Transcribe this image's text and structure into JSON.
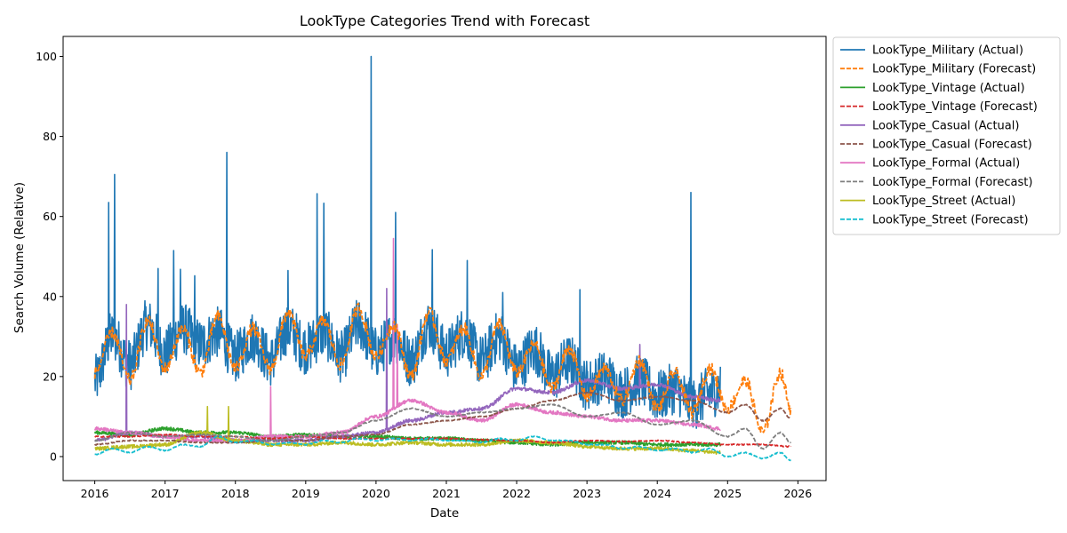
{
  "chart_data": {
    "type": "line",
    "title": "LookType Categories Trend with Forecast",
    "xlabel": "Date",
    "ylabel": "Search Volume (Relative)",
    "xlim": [
      2015.55,
      2026.4
    ],
    "ylim": [
      -6,
      105
    ],
    "x_ticks": [
      2016,
      2017,
      2018,
      2019,
      2020,
      2021,
      2022,
      2023,
      2024,
      2025,
      2026
    ],
    "x_tick_labels": [
      "2016",
      "2017",
      "2018",
      "2019",
      "2020",
      "2021",
      "2022",
      "2023",
      "2024",
      "2025",
      "2026"
    ],
    "y_ticks": [
      0,
      20,
      40,
      60,
      80,
      100
    ],
    "y_tick_labels": [
      "0",
      "20",
      "40",
      "60",
      "80",
      "100"
    ],
    "legend_position": "outside-right",
    "actual_range": [
      2016.0,
      2024.9
    ],
    "forecast_range": [
      2016.0,
      2025.9
    ],
    "series": [
      {
        "name": "LookType_Military (Actual)",
        "kind": "actual",
        "color": "#1f77b4",
        "dash": "solid",
        "x": [
          2016.0,
          2016.25,
          2016.5,
          2016.75,
          2017.0,
          2017.25,
          2017.5,
          2017.75,
          2018.0,
          2018.25,
          2018.5,
          2018.75,
          2019.0,
          2019.25,
          2019.5,
          2019.75,
          2020.0,
          2020.25,
          2020.5,
          2020.75,
          2021.0,
          2021.25,
          2021.5,
          2021.75,
          2022.0,
          2022.25,
          2022.5,
          2022.75,
          2023.0,
          2023.25,
          2023.5,
          2023.75,
          2024.0,
          2024.25,
          2024.5,
          2024.75,
          2024.9
        ],
        "y": [
          19,
          30,
          23,
          33,
          26,
          32,
          28,
          31,
          25,
          30,
          24,
          32,
          27,
          31,
          25,
          33,
          26,
          30,
          24,
          33,
          26,
          31,
          24,
          30,
          22,
          27,
          20,
          24,
          18,
          20,
          16,
          19,
          15,
          17,
          13,
          16,
          17
        ],
        "spikes": [
          [
            2016.2,
            63.5
          ],
          [
            2016.28,
            70.5
          ],
          [
            2016.9,
            47
          ],
          [
            2017.12,
            51.5
          ],
          [
            2017.22,
            46.8
          ],
          [
            2017.42,
            45.2
          ],
          [
            2017.88,
            76
          ],
          [
            2018.75,
            46.5
          ],
          [
            2019.16,
            65.7
          ],
          [
            2019.26,
            63.3
          ],
          [
            2019.93,
            100
          ],
          [
            2020.28,
            61
          ],
          [
            2020.8,
            51.7
          ],
          [
            2021.3,
            49
          ],
          [
            2021.8,
            41
          ],
          [
            2022.9,
            41.7
          ],
          [
            2024.48,
            66
          ]
        ]
      },
      {
        "name": "LookType_Military (Forecast)",
        "kind": "forecast",
        "color": "#ff7f0e",
        "dash": "dashed",
        "x": [
          2016.0,
          2016.25,
          2016.5,
          2016.75,
          2017.0,
          2017.25,
          2017.5,
          2017.75,
          2018.0,
          2018.25,
          2018.5,
          2018.75,
          2019.0,
          2019.25,
          2019.5,
          2019.75,
          2020.0,
          2020.25,
          2020.5,
          2020.75,
          2021.0,
          2021.25,
          2021.5,
          2021.75,
          2022.0,
          2022.25,
          2022.5,
          2022.75,
          2023.0,
          2023.25,
          2023.5,
          2023.75,
          2024.0,
          2024.25,
          2024.5,
          2024.75,
          2025.0,
          2025.25,
          2025.5,
          2025.75,
          2025.9
        ],
        "y": [
          21,
          31,
          19,
          34,
          22,
          32,
          21,
          35,
          22,
          32,
          22,
          36,
          25,
          34,
          23,
          37,
          25,
          33,
          20,
          36,
          24,
          32,
          20,
          33,
          21,
          28,
          17,
          27,
          15,
          22,
          14,
          24,
          12,
          21,
          11,
          22,
          12,
          19,
          6,
          21,
          12
        ]
      },
      {
        "name": "LookType_Vintage (Actual)",
        "kind": "actual",
        "color": "#2ca02c",
        "dash": "solid",
        "x": [
          2016.0,
          2016.5,
          2017.0,
          2017.5,
          2018.0,
          2018.5,
          2019.0,
          2019.5,
          2020.0,
          2020.5,
          2021.0,
          2021.5,
          2022.0,
          2022.5,
          2023.0,
          2023.5,
          2024.0,
          2024.5,
          2024.9
        ],
        "y": [
          6,
          5.5,
          7,
          6,
          6,
          5,
          5.5,
          5,
          5,
          4.5,
          4.5,
          4,
          3.5,
          3,
          3.5,
          3.5,
          3,
          3,
          3
        ]
      },
      {
        "name": "LookType_Vintage (Forecast)",
        "kind": "forecast",
        "color": "#d62728",
        "dash": "dashed",
        "x": [
          2016.0,
          2016.5,
          2017.0,
          2017.5,
          2018.0,
          2018.5,
          2019.0,
          2019.5,
          2020.0,
          2020.5,
          2021.0,
          2021.5,
          2022.0,
          2022.5,
          2023.0,
          2023.5,
          2024.0,
          2024.5,
          2025.0,
          2025.5,
          2025.9
        ],
        "y": [
          5,
          5,
          5.5,
          5,
          5,
          4.5,
          5,
          4.5,
          4.5,
          4.5,
          4.5,
          4.2,
          4,
          3.5,
          4,
          3.8,
          4,
          3.5,
          3,
          3,
          2.5
        ]
      },
      {
        "name": "LookType_Casual (Actual)",
        "kind": "actual",
        "color": "#9467bd",
        "dash": "solid",
        "x": [
          2016.0,
          2016.5,
          2017.0,
          2017.5,
          2018.0,
          2018.5,
          2019.0,
          2019.5,
          2020.0,
          2020.5,
          2021.0,
          2021.5,
          2022.0,
          2022.5,
          2023.0,
          2023.5,
          2024.0,
          2024.5,
          2024.9
        ],
        "y": [
          4,
          6,
          5,
          5,
          4,
          4,
          4,
          5,
          6,
          9,
          11,
          12,
          17,
          16,
          19,
          17,
          18,
          15,
          14
        ],
        "spikes": [
          [
            2016.45,
            38
          ],
          [
            2020.15,
            42
          ],
          [
            2023.75,
            28
          ]
        ]
      },
      {
        "name": "LookType_Casual (Forecast)",
        "kind": "forecast",
        "color": "#8c564b",
        "dash": "dashed",
        "x": [
          2016.0,
          2016.5,
          2017.0,
          2017.5,
          2018.0,
          2018.5,
          2019.0,
          2019.5,
          2020.0,
          2020.5,
          2021.0,
          2021.5,
          2022.0,
          2022.5,
          2023.0,
          2023.5,
          2024.0,
          2024.5,
          2025.0,
          2025.25,
          2025.5,
          2025.75,
          2025.9
        ],
        "y": [
          3,
          4,
          4,
          3.5,
          3.5,
          4,
          4,
          5,
          5.5,
          8,
          9,
          10,
          12,
          14,
          16,
          14,
          15,
          14,
          11,
          13,
          9,
          12,
          9.5
        ]
      },
      {
        "name": "LookType_Formal (Actual)",
        "kind": "actual",
        "color": "#e377c2",
        "dash": "solid",
        "x": [
          2016.0,
          2016.5,
          2017.0,
          2017.5,
          2018.0,
          2018.5,
          2019.0,
          2019.5,
          2020.0,
          2020.5,
          2021.0,
          2021.5,
          2022.0,
          2022.5,
          2023.0,
          2023.5,
          2024.0,
          2024.5,
          2024.9
        ],
        "y": [
          7,
          6,
          5,
          4,
          4,
          5,
          5,
          6,
          10,
          14,
          11,
          9,
          13,
          11,
          10,
          9,
          9,
          8,
          7
        ],
        "spikes": [
          [
            2018.5,
            17.5
          ],
          [
            2020.25,
            54.5
          ],
          [
            2020.3,
            33
          ]
        ]
      },
      {
        "name": "LookType_Formal (Forecast)",
        "kind": "forecast",
        "color": "#7f7f7f",
        "dash": "dashed",
        "x": [
          2016.0,
          2016.5,
          2017.0,
          2017.5,
          2018.0,
          2018.5,
          2019.0,
          2019.5,
          2020.0,
          2020.5,
          2021.0,
          2021.5,
          2022.0,
          2022.5,
          2023.0,
          2023.5,
          2024.0,
          2024.5,
          2025.0,
          2025.25,
          2025.5,
          2025.75,
          2025.9
        ],
        "y": [
          4,
          6,
          5,
          5.5,
          5,
          4,
          5,
          6,
          9,
          12,
          10,
          11,
          12,
          13,
          10,
          11,
          8,
          9,
          5,
          7,
          2,
          6,
          3.5
        ]
      },
      {
        "name": "LookType_Street (Actual)",
        "kind": "actual",
        "color": "#bcbd22",
        "dash": "solid",
        "x": [
          2016.0,
          2016.5,
          2017.0,
          2017.5,
          2018.0,
          2018.5,
          2019.0,
          2019.5,
          2020.0,
          2020.5,
          2021.0,
          2021.5,
          2022.0,
          2022.5,
          2023.0,
          2023.5,
          2024.0,
          2024.5,
          2024.9
        ],
        "y": [
          2,
          2.5,
          3,
          6,
          4,
          3,
          3,
          3.5,
          3,
          3.5,
          3,
          3,
          4,
          3.5,
          2.5,
          2,
          2,
          1.5,
          1
        ],
        "spikes": [
          [
            2017.6,
            12.5
          ],
          [
            2017.9,
            12.5
          ]
        ]
      },
      {
        "name": "LookType_Street (Forecast)",
        "kind": "forecast",
        "color": "#17becf",
        "dash": "dashed",
        "x": [
          2016.0,
          2016.25,
          2016.5,
          2016.75,
          2017.0,
          2017.25,
          2017.5,
          2017.75,
          2018.0,
          2018.25,
          2018.5,
          2018.75,
          2019.0,
          2019.25,
          2019.5,
          2019.75,
          2020.0,
          2020.25,
          2020.5,
          2020.75,
          2021.0,
          2021.25,
          2021.5,
          2021.75,
          2022.0,
          2022.25,
          2022.5,
          2022.75,
          2023.0,
          2023.25,
          2023.5,
          2023.75,
          2024.0,
          2024.25,
          2024.5,
          2024.75,
          2025.0,
          2025.25,
          2025.5,
          2025.75,
          2025.9
        ],
        "y": [
          0.5,
          2,
          1,
          2.5,
          1.5,
          3,
          2.5,
          5,
          3.5,
          4,
          3,
          3.5,
          3,
          4,
          3.5,
          4.5,
          4,
          4.5,
          4,
          4.5,
          4,
          4,
          3.5,
          4.5,
          4,
          5,
          4,
          4,
          3,
          3,
          2,
          2.5,
          1.5,
          2,
          1,
          2,
          0,
          1,
          -0.5,
          1,
          -1
        ]
      }
    ]
  }
}
